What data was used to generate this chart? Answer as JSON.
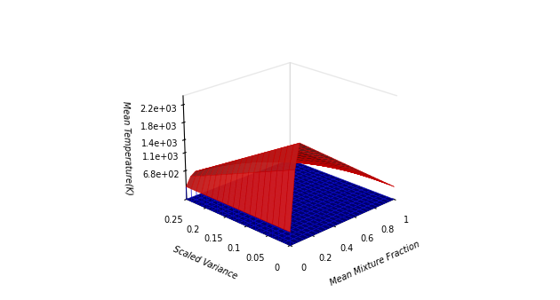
{
  "zlabel": "Mean Temperature(K)",
  "xlabel": "Mean Mixture Fraction",
  "ylabel": "Scaled Variance",
  "z_tick_labels": [
    "6.8e+02",
    "1.1e+03",
    "1.4e+03",
    "1.8e+03",
    "2.2e+03"
  ],
  "z_tick_vals": [
    680,
    1100,
    1400,
    1800,
    2200
  ],
  "zlim": [
    0,
    2400
  ],
  "surface_color": "#FF2222",
  "floor_color": "#00008B",
  "wall_color": "#0000FF",
  "elev": 22,
  "azim": -135,
  "n_f": 25,
  "n_v": 20,
  "T_max": 2200,
  "T_min": 300,
  "f_stoich": 0.06
}
